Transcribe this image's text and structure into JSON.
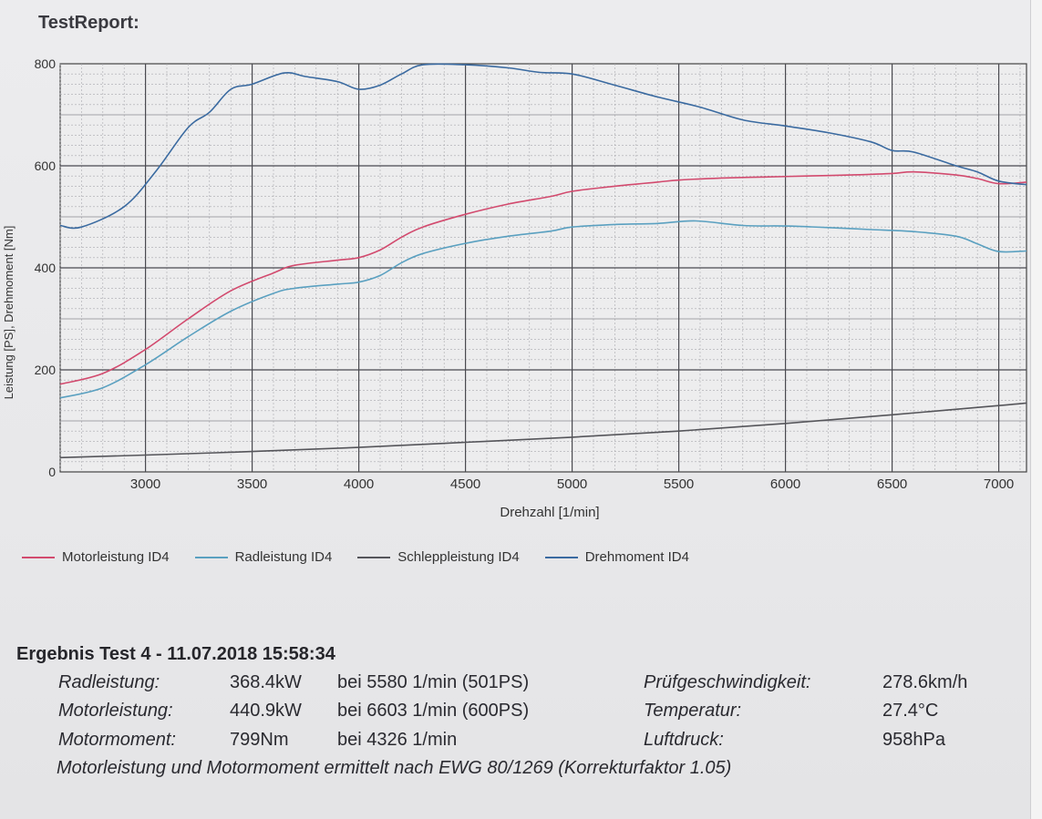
{
  "report_title": "TestReport:",
  "chart_data": {
    "type": "line",
    "xlabel": "Drehzahl [1/min]",
    "ylabel": "Leistung [PS], Drehmoment [Nm]",
    "xlim": [
      2600,
      7130
    ],
    "ylim": [
      0,
      800
    ],
    "x_ticks": [
      3000,
      3500,
      4000,
      4500,
      5000,
      5500,
      6000,
      6500,
      7000
    ],
    "y_ticks": [
      0,
      200,
      400,
      600,
      800
    ],
    "grid": true,
    "legend_position": "bottom",
    "series": [
      {
        "name": "Motorleistung ID4",
        "color": "#d24a6e",
        "x": [
          2600,
          2800,
          3000,
          3200,
          3400,
          3600,
          3700,
          3900,
          4000,
          4100,
          4200,
          4300,
          4500,
          4700,
          4900,
          5000,
          5200,
          5400,
          5500,
          5700,
          5900,
          6100,
          6300,
          6500,
          6603,
          6800,
          6900,
          7000,
          7130
        ],
        "y": [
          172,
          193,
          240,
          300,
          355,
          390,
          405,
          415,
          420,
          435,
          460,
          480,
          505,
          525,
          540,
          550,
          560,
          568,
          572,
          576,
          578,
          580,
          582,
          585,
          588,
          582,
          575,
          565,
          568
        ]
      },
      {
        "name": "Radleistung ID4",
        "color": "#5aa0c0",
        "x": [
          2600,
          2800,
          3000,
          3200,
          3400,
          3600,
          3700,
          3900,
          4000,
          4100,
          4200,
          4300,
          4500,
          4700,
          4900,
          5000,
          5200,
          5400,
          5580,
          5800,
          6000,
          6200,
          6400,
          6600,
          6800,
          6900,
          7000,
          7130
        ],
        "y": [
          145,
          165,
          210,
          265,
          315,
          350,
          360,
          368,
          372,
          385,
          410,
          428,
          448,
          462,
          472,
          480,
          485,
          487,
          492,
          483,
          482,
          479,
          475,
          471,
          462,
          447,
          432,
          433
        ]
      },
      {
        "name": "Schleppleistung ID4",
        "color": "#55555a",
        "x": [
          2600,
          3000,
          3500,
          4000,
          4500,
          5000,
          5500,
          6000,
          6500,
          7000,
          7130
        ],
        "y": [
          28,
          33,
          40,
          48,
          58,
          68,
          80,
          95,
          112,
          130,
          135
        ]
      },
      {
        "name": "Drehmoment ID4",
        "color": "#3a6aa0",
        "x": [
          2600,
          2700,
          2900,
          3050,
          3200,
          3300,
          3400,
          3500,
          3650,
          3750,
          3900,
          4000,
          4100,
          4200,
          4300,
          4500,
          4700,
          4850,
          5000,
          5200,
          5400,
          5600,
          5800,
          6000,
          6200,
          6400,
          6500,
          6600,
          6800,
          6900,
          7000,
          7130
        ],
        "y": [
          483,
          480,
          520,
          590,
          675,
          705,
          750,
          760,
          782,
          775,
          765,
          750,
          758,
          780,
          798,
          798,
          792,
          783,
          780,
          758,
          735,
          715,
          690,
          678,
          665,
          647,
          630,
          627,
          600,
          588,
          570,
          563
        ]
      }
    ]
  },
  "results": {
    "heading": "Ergebnis Test 4 - 11.07.2018 15:58:34",
    "rows": [
      {
        "label": "Radleistung:",
        "value": "368.4kW",
        "detail": "bei 5580 1/min (501PS)",
        "label2": "Prüfgeschwindigkeit:",
        "value2": "278.6km/h"
      },
      {
        "label": "Motorleistung:",
        "value": "440.9kW",
        "detail": "bei 6603 1/min (600PS)",
        "label2": "Temperatur:",
        "value2": "27.4°C"
      },
      {
        "label": "Motormoment:",
        "value": "799Nm",
        "detail": "bei 4326 1/min",
        "label2": "Luftdruck:",
        "value2": "958hPa"
      }
    ],
    "note": "Motorleistung und Motormoment ermittelt nach EWG 80/1269 (Korrekturfaktor 1.05)"
  }
}
